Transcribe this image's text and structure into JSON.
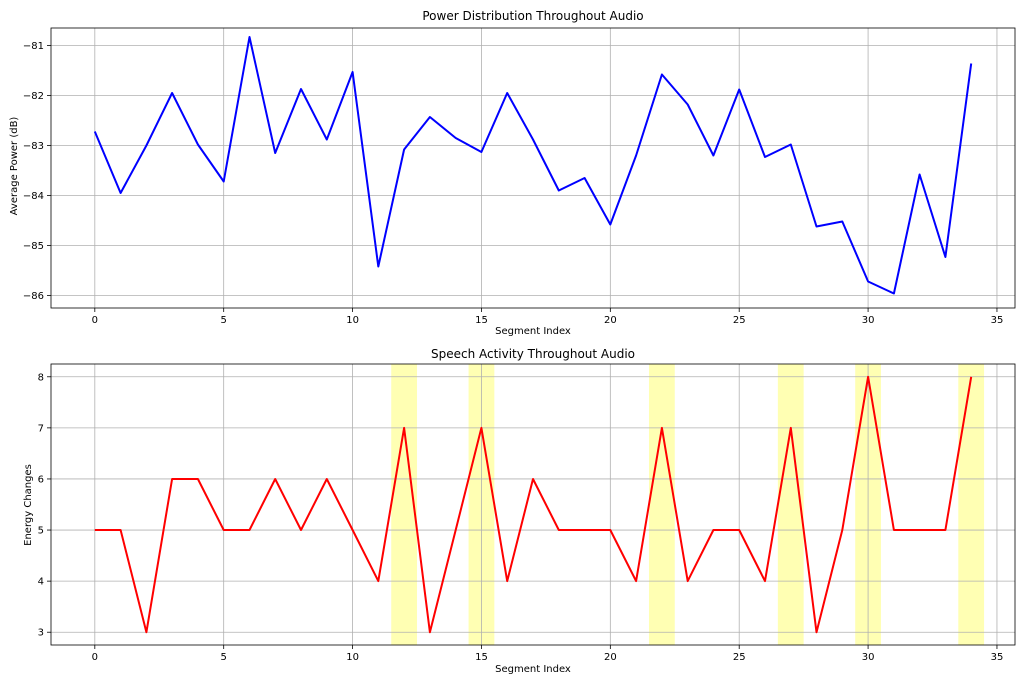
{
  "chart_data": [
    {
      "type": "line",
      "title": "Power Distribution Throughout Audio",
      "xlabel": "Segment Index",
      "ylabel": "Average Power (dB)",
      "xlim": [
        -1.7,
        35.7
      ],
      "ylim": [
        -86.25,
        -80.65
      ],
      "xticks": [
        0,
        5,
        10,
        15,
        20,
        25,
        30,
        35
      ],
      "xtick_labels": [
        "0",
        "5",
        "10",
        "15",
        "20",
        "25",
        "30",
        "35"
      ],
      "yticks": [
        -81,
        -82,
        -83,
        -84,
        -85,
        -86
      ],
      "ytick_labels": [
        "−81",
        "−82",
        "−83",
        "−84",
        "−85",
        "−86"
      ],
      "grid": true,
      "series": [
        {
          "color": "#0000ff",
          "x": [
            0,
            1,
            2,
            3,
            4,
            5,
            6,
            7,
            8,
            9,
            10,
            11,
            12,
            13,
            14,
            15,
            16,
            17,
            18,
            19,
            20,
            21,
            22,
            23,
            24,
            25,
            26,
            27,
            28,
            29,
            30,
            31,
            32,
            33,
            34
          ],
          "values": [
            -82.72,
            -83.95,
            -83.0,
            -81.95,
            -82.98,
            -83.72,
            -80.83,
            -83.15,
            -81.87,
            -82.88,
            -81.53,
            -85.42,
            -83.08,
            -82.43,
            -82.85,
            -83.13,
            -81.95,
            -82.88,
            -83.9,
            -83.65,
            -84.58,
            -83.2,
            -81.58,
            -82.18,
            -83.2,
            -81.88,
            -83.23,
            -82.98,
            -84.62,
            -84.52,
            -85.72,
            -85.96,
            -83.58,
            -85.23,
            -81.36
          ]
        }
      ]
    },
    {
      "type": "line",
      "title": "Speech Activity Throughout Audio",
      "xlabel": "Segment Index",
      "ylabel": "Energy Changes",
      "xlim": [
        -1.7,
        35.7
      ],
      "ylim": [
        2.75,
        8.25
      ],
      "xticks": [
        0,
        5,
        10,
        15,
        20,
        25,
        30,
        35
      ],
      "xtick_labels": [
        "0",
        "5",
        "10",
        "15",
        "20",
        "25",
        "30",
        "35"
      ],
      "yticks": [
        3,
        4,
        5,
        6,
        7,
        8
      ],
      "ytick_labels": [
        "3",
        "4",
        "5",
        "6",
        "7",
        "8"
      ],
      "grid": true,
      "series": [
        {
          "color": "#ff0000",
          "x": [
            0,
            1,
            2,
            3,
            4,
            5,
            6,
            7,
            8,
            9,
            10,
            11,
            12,
            13,
            14,
            15,
            16,
            17,
            18,
            19,
            20,
            21,
            22,
            23,
            24,
            25,
            26,
            27,
            28,
            29,
            30,
            31,
            32,
            33,
            34
          ],
          "values": [
            5,
            5,
            3,
            6,
            6,
            5,
            5,
            6,
            5,
            6,
            5,
            4,
            7,
            3,
            5,
            7,
            4,
            6,
            5,
            5,
            5,
            4,
            7,
            4,
            5,
            5,
            4,
            7,
            3,
            5,
            8,
            5,
            5,
            5,
            8
          ]
        }
      ],
      "highlights": {
        "color": "#ffff99",
        "spans": [
          [
            11.5,
            12.5
          ],
          [
            14.5,
            15.5
          ],
          [
            21.5,
            22.5
          ],
          [
            26.5,
            27.5
          ],
          [
            29.5,
            30.5
          ],
          [
            33.5,
            34.5
          ]
        ]
      }
    }
  ]
}
